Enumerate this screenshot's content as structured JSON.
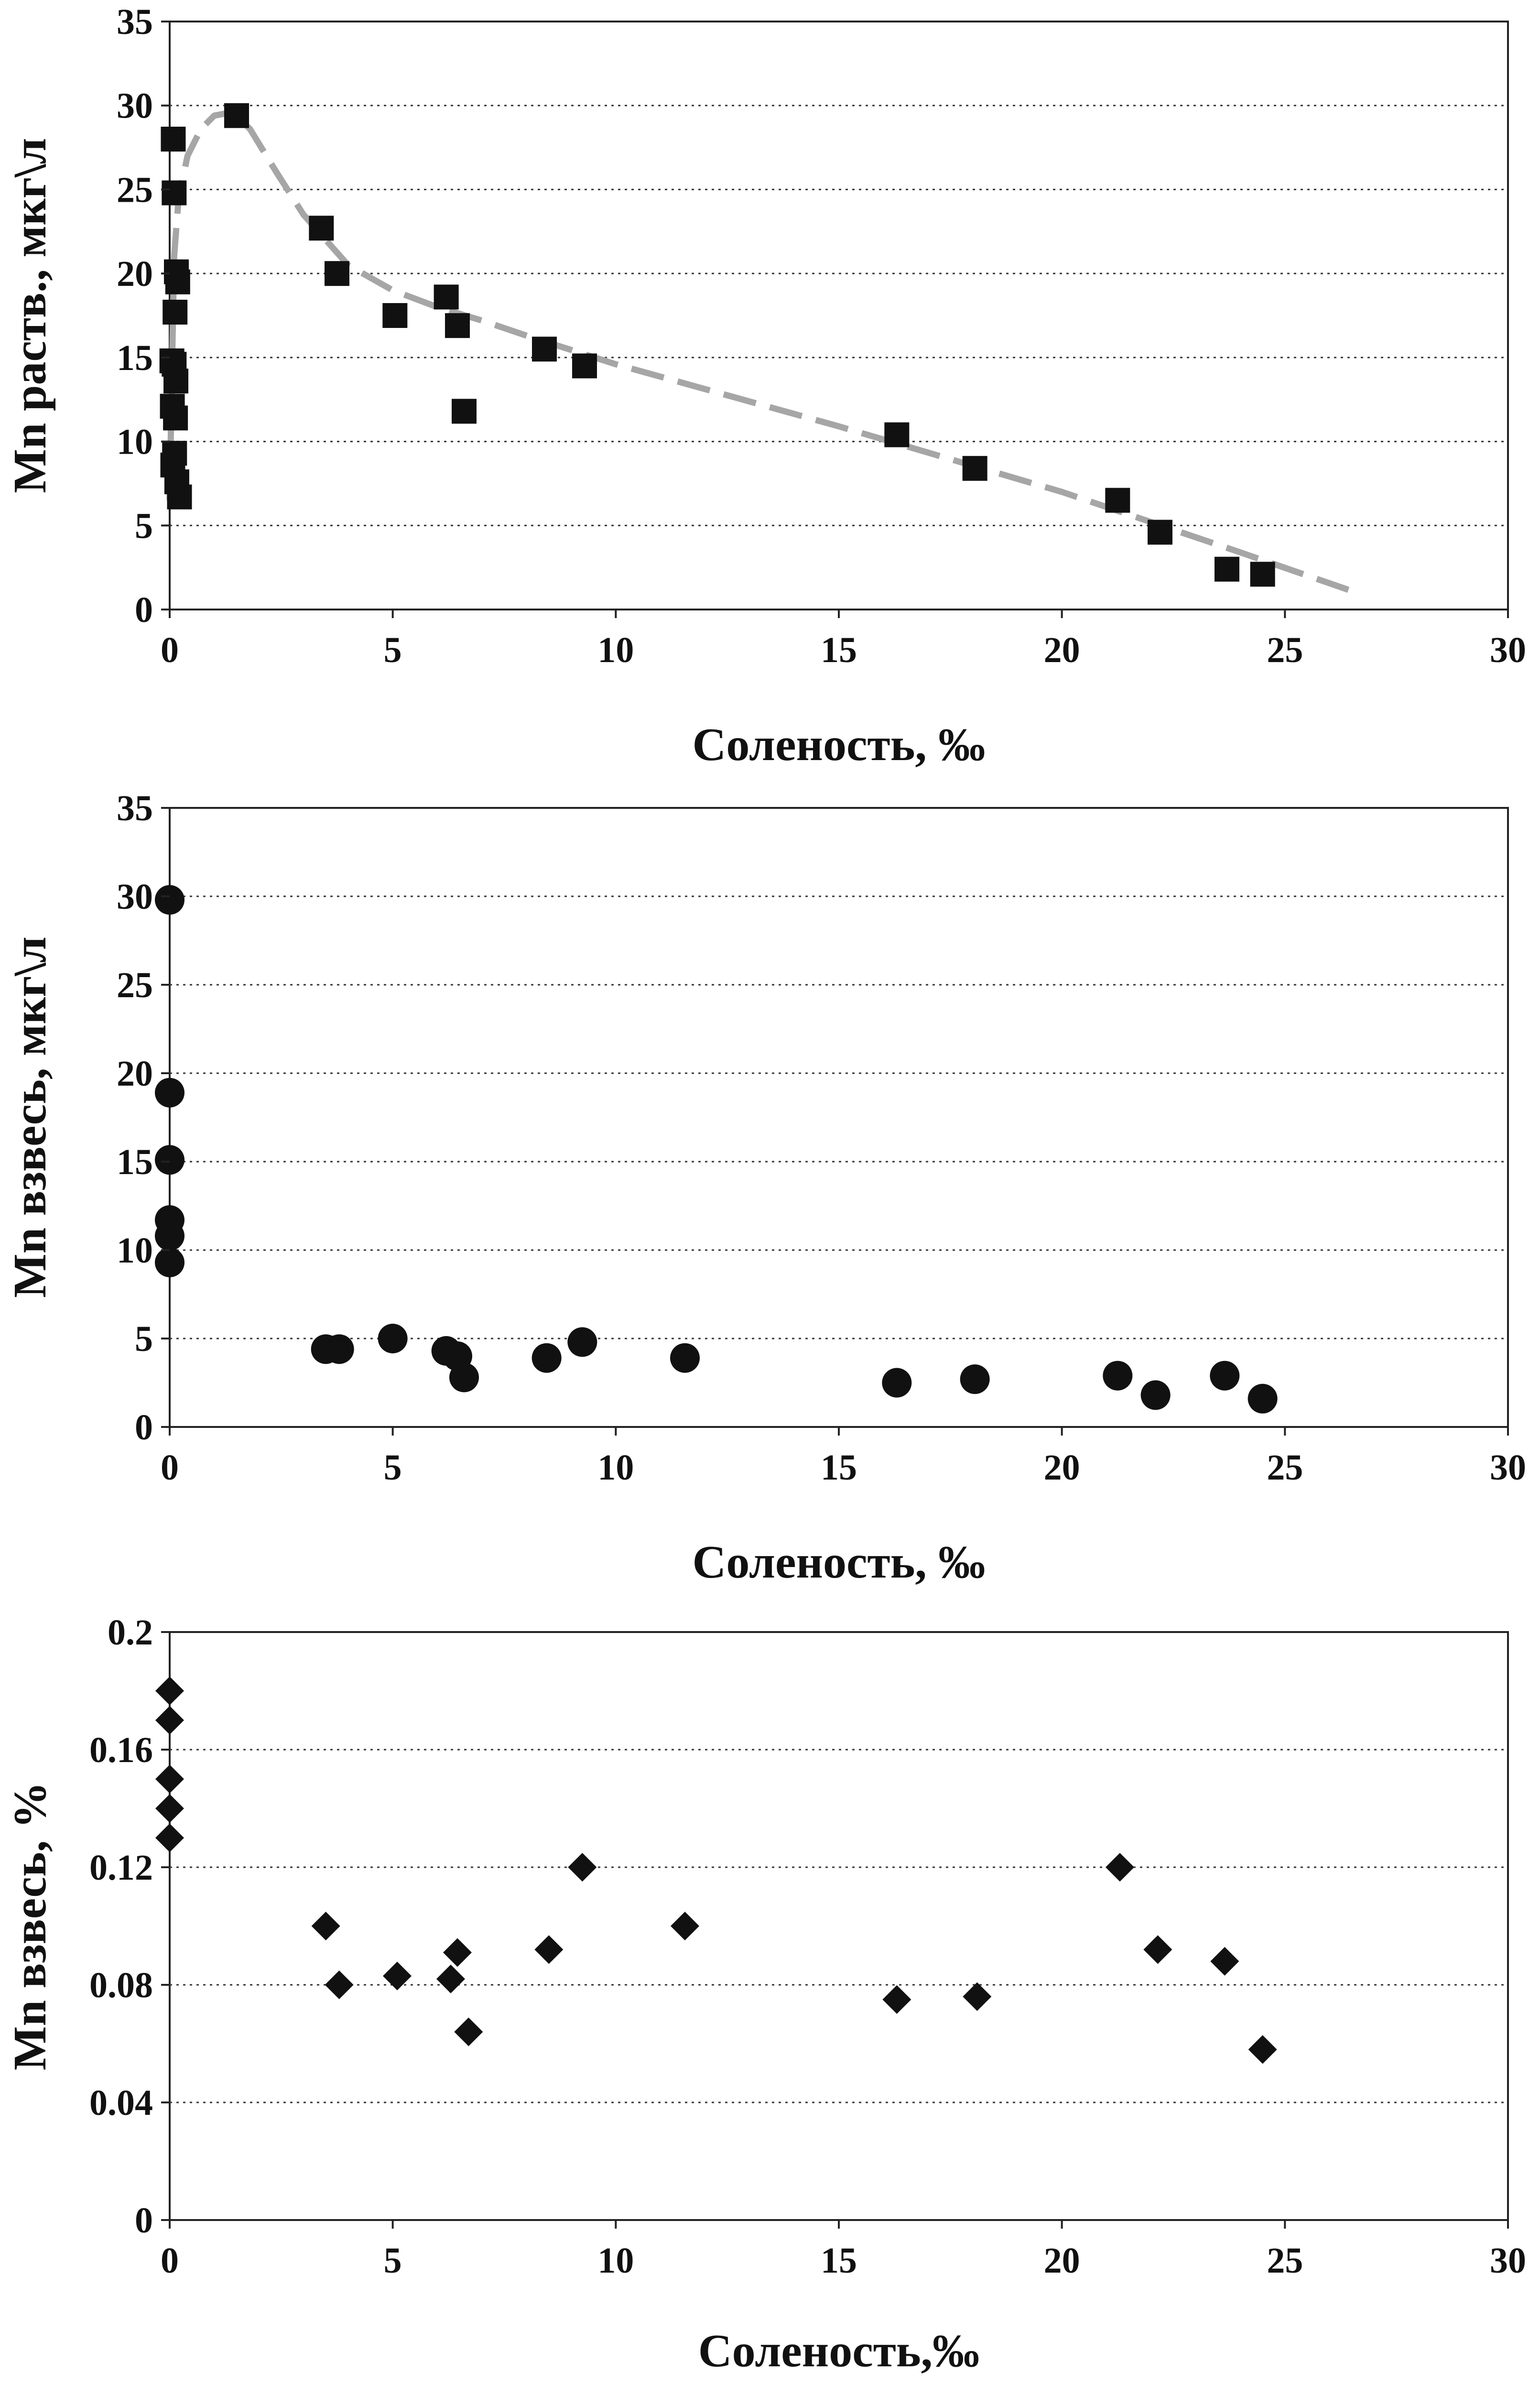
{
  "chart_data": [
    {
      "type": "scatter",
      "xlabel": "Соленость, ‰",
      "ylabel": "Mn раств., мкг\\л",
      "xlim": [
        0,
        30
      ],
      "ylim": [
        0,
        35
      ],
      "x_ticks": [
        "0",
        "5",
        "10",
        "15",
        "20",
        "25",
        "30"
      ],
      "y_ticks": [
        "0",
        "5",
        "10",
        "15",
        "20",
        "25",
        "30",
        "35"
      ],
      "grid": "horizontal dotted",
      "marker": "square",
      "series": [
        {
          "points": [
            [
              0.08,
              28.0
            ],
            [
              0.1,
              24.8
            ],
            [
              0.15,
              20.1
            ],
            [
              0.18,
              19.5
            ],
            [
              0.12,
              17.7
            ],
            [
              0.05,
              14.8
            ],
            [
              0.1,
              14.6
            ],
            [
              0.14,
              13.6
            ],
            [
              0.06,
              12.1
            ],
            [
              0.13,
              11.4
            ],
            [
              0.11,
              9.3
            ],
            [
              0.07,
              8.6
            ],
            [
              0.16,
              7.6
            ],
            [
              0.22,
              6.7
            ],
            [
              1.5,
              29.4
            ],
            [
              3.4,
              22.7
            ],
            [
              3.75,
              20.0
            ],
            [
              5.05,
              17.5
            ],
            [
              6.2,
              18.6
            ],
            [
              6.45,
              16.9
            ],
            [
              6.6,
              11.8
            ],
            [
              8.4,
              15.5
            ],
            [
              9.3,
              14.5
            ],
            [
              16.3,
              10.4
            ],
            [
              18.05,
              8.4
            ],
            [
              21.25,
              6.5
            ],
            [
              22.2,
              4.6
            ],
            [
              23.7,
              2.4
            ],
            [
              24.5,
              2.1
            ]
          ]
        }
      ],
      "trend_line": {
        "style": "dashed",
        "color": "#a6a6a6",
        "points": [
          [
            0.0,
            6.5
          ],
          [
            0.05,
            14.0
          ],
          [
            0.1,
            21.0
          ],
          [
            0.2,
            24.5
          ],
          [
            0.4,
            27.0
          ],
          [
            0.7,
            28.6
          ],
          [
            1.0,
            29.4
          ],
          [
            1.4,
            29.6
          ],
          [
            1.8,
            28.6
          ],
          [
            2.4,
            26.0
          ],
          [
            3.0,
            23.5
          ],
          [
            4.0,
            20.5
          ],
          [
            5.0,
            19.0
          ],
          [
            6.0,
            18.0
          ],
          [
            7.0,
            17.2
          ],
          [
            8.0,
            16.3
          ],
          [
            10.0,
            14.6
          ],
          [
            15.0,
            10.9
          ],
          [
            20.0,
            7.0
          ],
          [
            24.0,
            3.4
          ],
          [
            26.5,
            1.1
          ]
        ]
      }
    },
    {
      "type": "scatter",
      "xlabel": "Соленость, ‰",
      "ylabel": "Mn взвесь, мкг\\л",
      "xlim": [
        0,
        30
      ],
      "ylim": [
        0,
        35
      ],
      "x_ticks": [
        "0",
        "5",
        "10",
        "15",
        "20",
        "25",
        "30"
      ],
      "y_ticks": [
        "0",
        "5",
        "10",
        "15",
        "20",
        "25",
        "30",
        "35"
      ],
      "grid": "horizontal dotted",
      "marker": "circle",
      "series": [
        {
          "points": [
            [
              0.0,
              29.8
            ],
            [
              0.0,
              18.9
            ],
            [
              0.0,
              15.1
            ],
            [
              0.0,
              11.7
            ],
            [
              0.0,
              10.8
            ],
            [
              0.0,
              9.3
            ],
            [
              3.5,
              4.4
            ],
            [
              3.8,
              4.4
            ],
            [
              5.0,
              5.0
            ],
            [
              6.2,
              4.3
            ],
            [
              6.45,
              4.0
            ],
            [
              6.6,
              2.8
            ],
            [
              8.45,
              3.9
            ],
            [
              9.25,
              4.8
            ],
            [
              11.55,
              3.9
            ],
            [
              16.3,
              2.5
            ],
            [
              18.05,
              2.7
            ],
            [
              21.25,
              2.9
            ],
            [
              22.1,
              1.8
            ],
            [
              23.65,
              2.9
            ],
            [
              24.5,
              1.6
            ]
          ]
        }
      ]
    },
    {
      "type": "scatter",
      "xlabel": "Соленость,‰",
      "ylabel": "Mn взвесь, %",
      "xlim": [
        0,
        30
      ],
      "ylim": [
        0,
        0.2
      ],
      "x_ticks": [
        "0",
        "5",
        "10",
        "15",
        "20",
        "25",
        "30"
      ],
      "y_ticks": [
        "0",
        "0.04",
        "0.08",
        "0.12",
        "0.16",
        "0.2"
      ],
      "grid": "horizontal dotted",
      "marker": "diamond",
      "series": [
        {
          "points": [
            [
              0.0,
              0.18
            ],
            [
              0.0,
              0.17
            ],
            [
              0.0,
              0.15
            ],
            [
              0.0,
              0.14
            ],
            [
              0.0,
              0.13
            ],
            [
              3.5,
              0.1
            ],
            [
              3.8,
              0.08
            ],
            [
              5.1,
              0.083
            ],
            [
              6.3,
              0.082
            ],
            [
              6.45,
              0.091
            ],
            [
              6.7,
              0.064
            ],
            [
              8.5,
              0.092
            ],
            [
              9.25,
              0.12
            ],
            [
              11.55,
              0.1
            ],
            [
              16.3,
              0.075
            ],
            [
              18.1,
              0.076
            ],
            [
              21.3,
              0.12
            ],
            [
              22.15,
              0.092
            ],
            [
              23.65,
              0.088
            ],
            [
              24.5,
              0.058
            ]
          ]
        }
      ]
    }
  ]
}
